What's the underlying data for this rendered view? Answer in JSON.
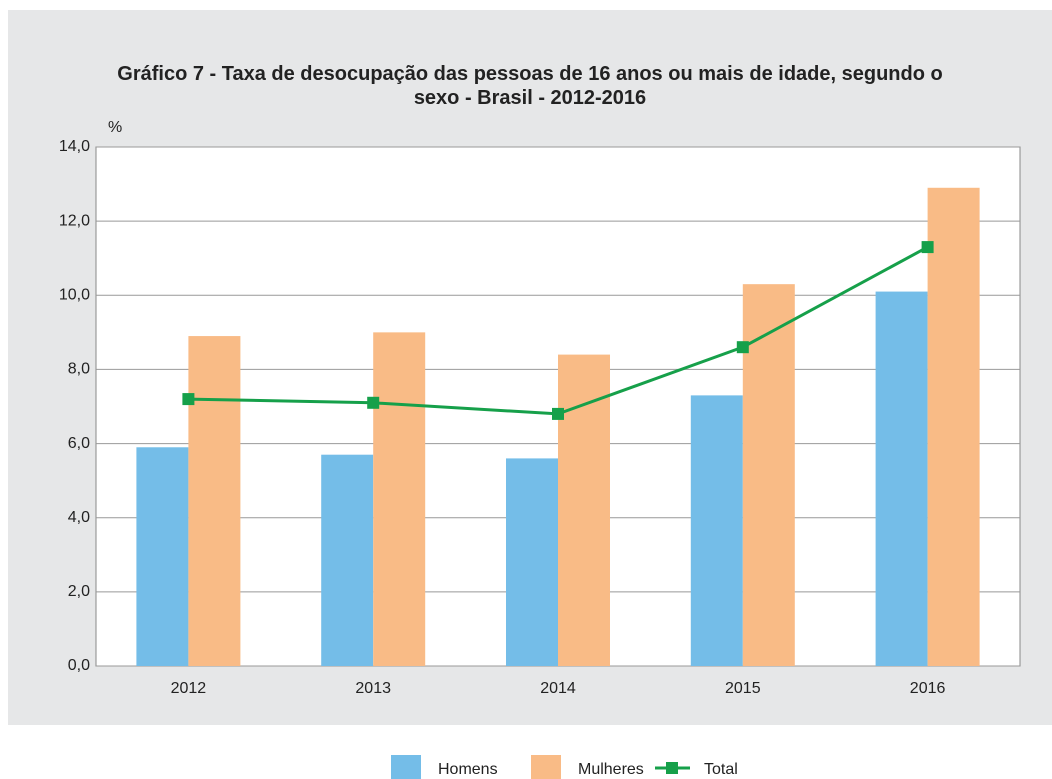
{
  "chart_data": {
    "type": "bar_line",
    "title": "Gráfico 7 - Taxa de desocupação das pessoas de 16 anos ou mais de idade, segundo o sexo - Brasil - 2012-2016",
    "ylabel": "%",
    "categories": [
      "2012",
      "2013",
      "2014",
      "2015",
      "2016"
    ],
    "series": [
      {
        "name": "Homens",
        "type": "bar",
        "color": "#74bde8",
        "values": [
          5.9,
          5.7,
          5.6,
          7.3,
          10.1
        ]
      },
      {
        "name": "Mulheres",
        "type": "bar",
        "color": "#f9bb86",
        "values": [
          8.9,
          9.0,
          8.4,
          10.3,
          12.9
        ]
      },
      {
        "name": "Total",
        "type": "line",
        "color": "#16a04a",
        "values": [
          7.2,
          7.1,
          6.8,
          8.6,
          11.3
        ]
      }
    ],
    "ylim": [
      0,
      14
    ],
    "yticks": [
      {
        "value": 0,
        "label": "0,0"
      },
      {
        "value": 2,
        "label": "2,0"
      },
      {
        "value": 4,
        "label": "4,0"
      },
      {
        "value": 6,
        "label": "6,0"
      },
      {
        "value": 8,
        "label": "8,0"
      },
      {
        "value": 10,
        "label": "10,0"
      },
      {
        "value": 12,
        "label": "12,0"
      },
      {
        "value": 14,
        "label": "14,0"
      }
    ],
    "grid": true,
    "legend": "bottom"
  }
}
